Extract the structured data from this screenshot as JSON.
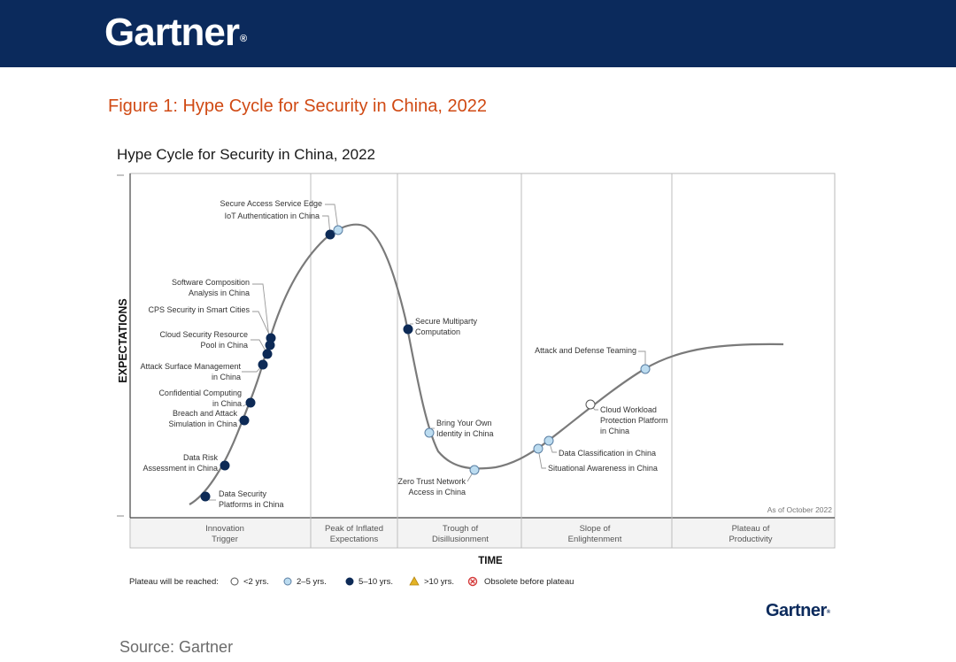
{
  "header": {
    "brand": "Gartner",
    "brand_mark": "®"
  },
  "figure_title": "Figure 1: Hype Cycle for Security in China, 2022",
  "chart_title": "Hype Cycle for Security in China, 2022",
  "y_axis_label": "EXPECTATIONS",
  "x_axis_label": "TIME",
  "as_of": "As of October 2022",
  "phases": [
    {
      "lines": [
        "Innovation",
        "Trigger"
      ]
    },
    {
      "lines": [
        "Peak of Inflated",
        "Expectations"
      ]
    },
    {
      "lines": [
        "Trough of",
        "Disillusionment"
      ]
    },
    {
      "lines": [
        "Slope of",
        "Enlightenment"
      ]
    },
    {
      "lines": [
        "Plateau of",
        "Productivity"
      ]
    }
  ],
  "legend": {
    "title": "Plateau will be reached:",
    "items": [
      {
        "label": "<2 yrs.",
        "symbol": "circle-white"
      },
      {
        "label": "2–5 yrs.",
        "symbol": "circle-light"
      },
      {
        "label": "5–10 yrs.",
        "symbol": "circle-dark"
      },
      {
        "label": ">10 yrs.",
        "symbol": "triangle"
      },
      {
        "label": "Obsolete before plateau",
        "symbol": "x-circle"
      }
    ]
  },
  "chart_data": {
    "type": "scatter",
    "description_phases": [
      "Innovation Trigger",
      "Peak of Inflated Expectations",
      "Trough of Disillusionment",
      "Slope of Enlightenment",
      "Plateau of Productivity"
    ],
    "points": [
      {
        "lines": [
          "Data Security",
          "Platforms in China"
        ],
        "cat": "5-10",
        "phase": 0
      },
      {
        "lines": [
          "Data Risk",
          "Assessment in China"
        ],
        "cat": "5-10",
        "phase": 0
      },
      {
        "lines": [
          "Breach and Attack",
          "Simulation in China"
        ],
        "cat": "5-10",
        "phase": 0
      },
      {
        "lines": [
          "Confidential Computing",
          "in China"
        ],
        "cat": "5-10",
        "phase": 0
      },
      {
        "lines": [
          "Attack Surface Management",
          "in China"
        ],
        "cat": "5-10",
        "phase": 0
      },
      {
        "lines": [
          "Cloud Security Resource",
          "Pool in China"
        ],
        "cat": "5-10",
        "phase": 0
      },
      {
        "lines": [
          "CPS Security in Smart Cities"
        ],
        "cat": "5-10",
        "phase": 0
      },
      {
        "lines": [
          "Software Composition",
          "Analysis in China"
        ],
        "cat": "5-10",
        "phase": 0
      },
      {
        "lines": [
          "IoT Authentication in China"
        ],
        "cat": "5-10",
        "phase": 1
      },
      {
        "lines": [
          "Secure Access Service Edge"
        ],
        "cat": "2-5",
        "phase": 1
      },
      {
        "lines": [
          "Secure Multiparty",
          "Computation"
        ],
        "cat": "5-10",
        "phase": 2
      },
      {
        "lines": [
          "Bring Your Own",
          "Identity in China"
        ],
        "cat": "2-5",
        "phase": 2
      },
      {
        "lines": [
          "Zero Trust Network",
          "Access in China"
        ],
        "cat": "2-5",
        "phase": 2
      },
      {
        "lines": [
          "Situational Awareness in China"
        ],
        "cat": "2-5",
        "phase": 3
      },
      {
        "lines": [
          "Data Classification in China"
        ],
        "cat": "2-5",
        "phase": 3
      },
      {
        "lines": [
          "Cloud Workload",
          "Protection Platform",
          "in China"
        ],
        "cat": "<2",
        "phase": 3
      },
      {
        "lines": [
          "Attack and Defense Teaming"
        ],
        "cat": "2-5",
        "phase": 3
      }
    ]
  },
  "footer": {
    "brand": "Gartner",
    "brand_mark": "®"
  },
  "source": "Source: Gartner",
  "colors": {
    "header_bg": "#0b2a5c",
    "accent": "#d04a14",
    "dark_point": "#0d2a56",
    "light_point": "#bcdcf0",
    "curve": "#7a7a7a"
  }
}
